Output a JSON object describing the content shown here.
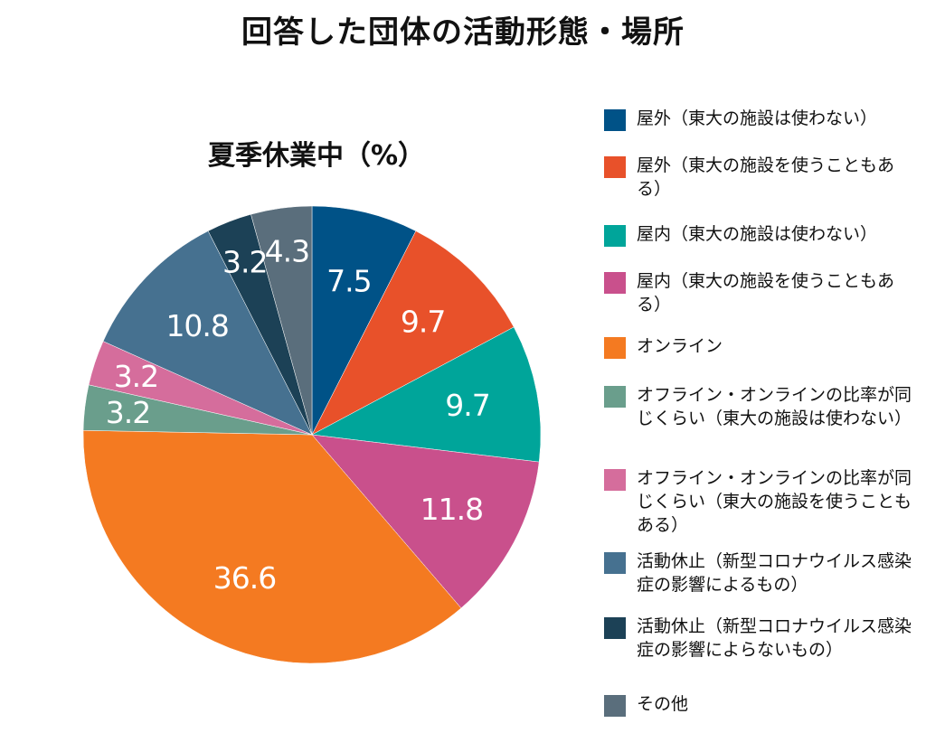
{
  "title": "回答した団体の活動形態・場所",
  "chart_data": {
    "type": "pie",
    "title": "夏季休業中（%）",
    "start": "top",
    "direction": "clockwise",
    "slices": [
      {
        "label": "屋外（東大の施設は使わない）",
        "value": 7.5,
        "value_label": "7.5",
        "color": "#005287"
      },
      {
        "label": "屋外（東大の施設を使うこともある）",
        "value": 9.7,
        "value_label": "9.7",
        "color": "#e8512a"
      },
      {
        "label": "屋内（東大の施設は使わない）",
        "value": 9.7,
        "value_label": "9.7",
        "color": "#00a59a"
      },
      {
        "label": "屋内（東大の施設を使うこともある）",
        "value": 11.8,
        "value_label": "11.8",
        "color": "#c9508c"
      },
      {
        "label": "オンライン",
        "value": 36.6,
        "value_label": "36.6",
        "color": "#f47a21"
      },
      {
        "label": "オフライン・オンラインの比率が同じくらい（東大の施設は使わない）",
        "value": 3.2,
        "value_label": "3.2",
        "color": "#6a9e8c"
      },
      {
        "label": "オフライン・オンラインの比率が同じくらい（東大の施設を使うこともある）",
        "value": 3.2,
        "value_label": "3.2",
        "color": "#d56d9c"
      },
      {
        "label": "活動休止（新型コロナウイルス感染症の影響によるもの）",
        "value": 10.8,
        "value_label": "10.8",
        "color": "#467190"
      },
      {
        "label": "活動休止（新型コロナウイルス感染症の影響によらないもの）",
        "value": 3.2,
        "value_label": "3.2",
        "color": "#1c4156"
      },
      {
        "label": "その他",
        "value": 4.3,
        "value_label": "4.3",
        "color": "#5a6e7c"
      }
    ]
  },
  "legend": [
    {
      "text": "屋外（東大の施設は使わない）",
      "color": "#005287"
    },
    {
      "text": "屋外（東大の施設を使うこともある）",
      "color": "#e8512a"
    },
    {
      "text": "屋内（東大の施設は使わない）",
      "color": "#00a59a"
    },
    {
      "text": "屋内（東大の施設を使うこともある）",
      "color": "#c9508c"
    },
    {
      "text": "オンライン",
      "color": "#f47a21"
    },
    {
      "text": "オフライン・オンラインの比率が同じくらい（東大の施設は使わない）",
      "color": "#6a9e8c"
    },
    {
      "text": "オフライン・オンラインの比率が同じくらい（東大の施設を使うこともある）",
      "color": "#d56d9c"
    },
    {
      "text": "活動休止（新型コロナウイルス感染症の影響によるもの）",
      "color": "#467190"
    },
    {
      "text": "活動休止（新型コロナウイルス感染症の影響によらないもの）",
      "color": "#1c4156"
    },
    {
      "text": "その他",
      "color": "#5a6e7c"
    }
  ]
}
